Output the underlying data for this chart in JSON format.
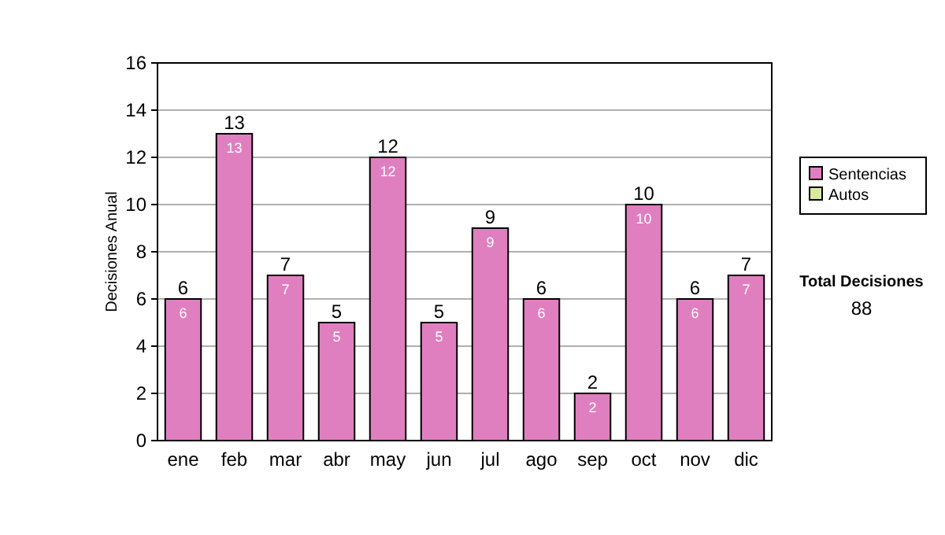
{
  "chart_data": {
    "type": "bar",
    "ylabel": "Decisiones Anual",
    "categories": [
      "ene",
      "feb",
      "mar",
      "abr",
      "may",
      "jun",
      "jul",
      "ago",
      "sep",
      "oct",
      "nov",
      "dic"
    ],
    "series": [
      {
        "name": "Sentencias",
        "color": "#e07fc0",
        "values": [
          6,
          13,
          7,
          5,
          12,
          5,
          9,
          6,
          2,
          10,
          6,
          7
        ]
      },
      {
        "name": "Autos",
        "color": "#d8eaa0",
        "values": [
          null,
          null,
          null,
          null,
          null,
          null,
          null,
          null,
          null,
          null,
          null,
          null
        ]
      }
    ],
    "stacked": true,
    "data_labels": true,
    "totals": [
      "6",
      "13",
      "7",
      "5",
      "12",
      "5",
      "9",
      "6",
      "2",
      "10",
      "6",
      "7"
    ],
    "ylim": [
      0,
      16
    ],
    "yticks": [
      0,
      2,
      4,
      6,
      8,
      10,
      12,
      14,
      16
    ],
    "grid": "y",
    "legend": "right",
    "annotations": [
      "Total Decisiones",
      "88"
    ]
  }
}
